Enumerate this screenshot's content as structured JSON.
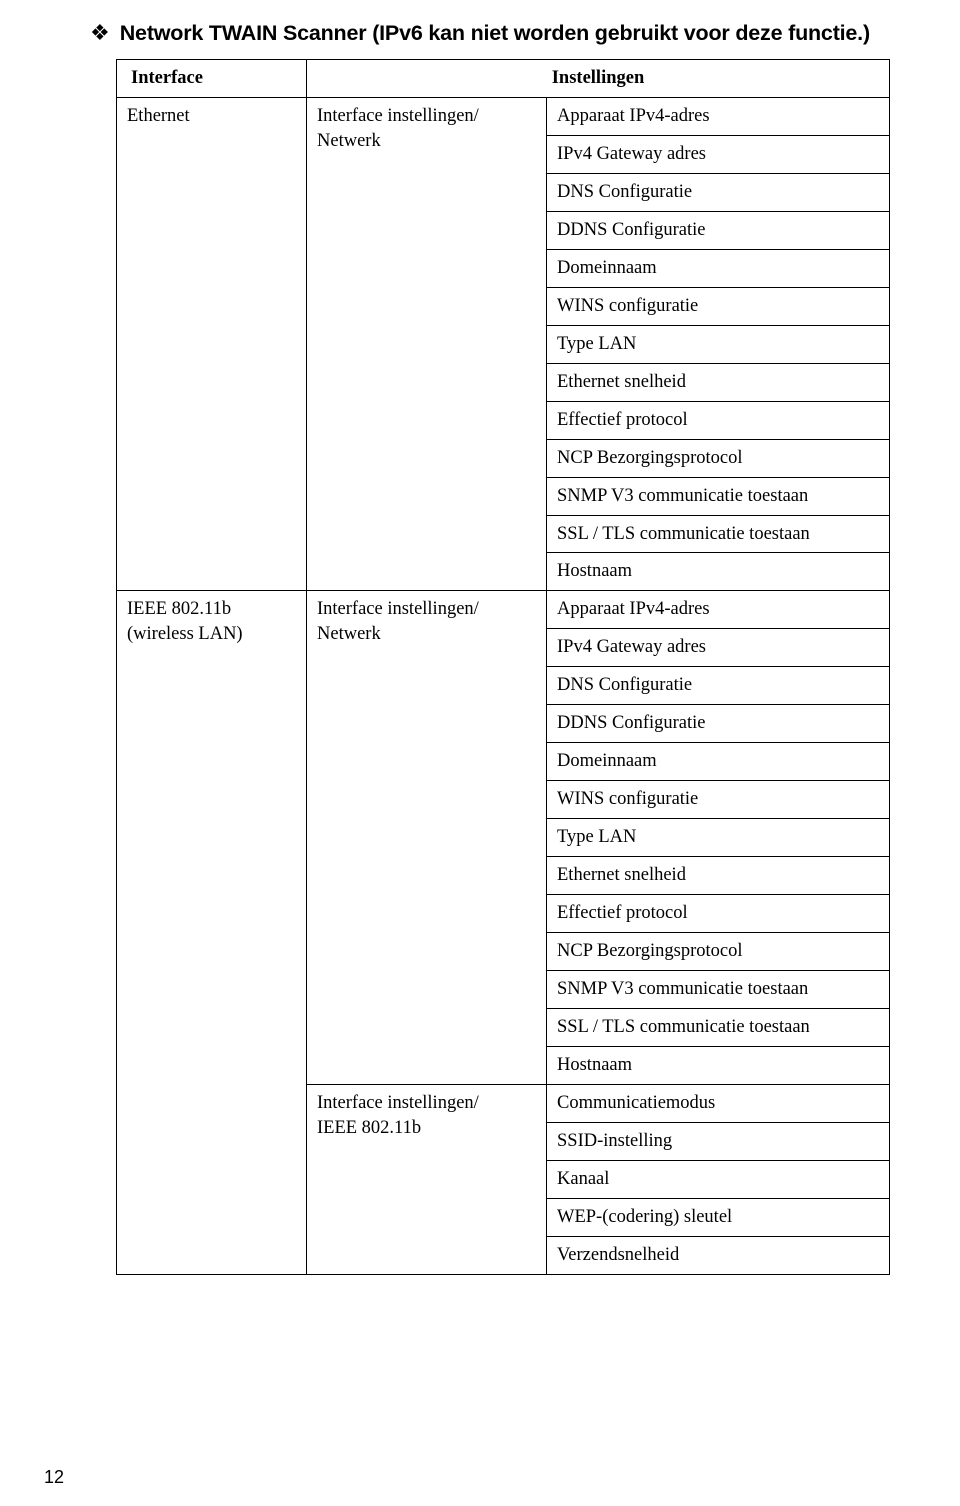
{
  "heading": {
    "bullet_glyph": "❖",
    "title": "Network TWAIN Scanner (IPv6 kan niet worden gebruikt voor deze functie.)"
  },
  "table": {
    "headers": {
      "interface": "Interface",
      "instellingen": "Instellingen"
    },
    "rows": {
      "ethernet": {
        "interface": "Ethernet",
        "setting_group": "Interface instellingen/\nNetwerk",
        "items": [
          "Apparaat IPv4-adres",
          "IPv4 Gateway adres",
          "DNS Configuratie",
          "DDNS Configuratie",
          "Domeinnaam",
          "WINS configuratie",
          "Type LAN",
          "Ethernet snelheid",
          "Effectief protocol",
          "NCP Bezorgingsprotocol",
          "SNMP V3 communicatie toestaan",
          "SSL / TLS communicatie toestaan",
          "Hostnaam"
        ]
      },
      "wireless": {
        "interface": "IEEE 802.11b\n(wireless LAN)",
        "group_network": "Interface instellingen/\nNetwerk",
        "items_network": [
          "Apparaat IPv4-adres",
          "IPv4 Gateway adres",
          "DNS Configuratie",
          "DDNS Configuratie",
          "Domeinnaam",
          "WINS configuratie",
          "Type LAN",
          "Ethernet snelheid",
          "Effectief protocol",
          "NCP Bezorgingsprotocol",
          "SNMP V3 communicatie toestaan",
          "SSL / TLS communicatie toestaan",
          "Hostnaam"
        ],
        "group_ieee": "Interface instellingen/\nIEEE 802.11b",
        "items_ieee": [
          "Communicatiemodus",
          "SSID-instelling",
          "Kanaal",
          "WEP-(codering) sleutel",
          "Verzendsnelheid"
        ]
      }
    }
  },
  "page_number": "12"
}
